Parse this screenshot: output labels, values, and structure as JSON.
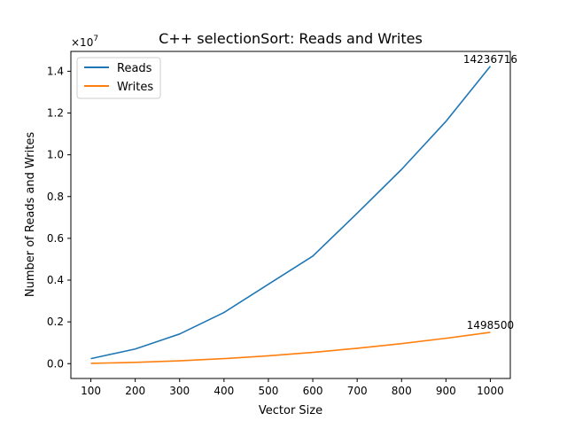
{
  "chart_data": {
    "type": "line",
    "title": "C++ selectionSort: Reads and Writes",
    "xlabel": "Vector Size",
    "ylabel": "Number of Reads and Writes",
    "y_multiplier_label": "×10",
    "y_multiplier_exp": "7",
    "x": [
      100,
      200,
      300,
      400,
      500,
      600,
      700,
      800,
      900,
      1000
    ],
    "x_ticks": [
      "100",
      "200",
      "300",
      "400",
      "500",
      "600",
      "700",
      "800",
      "900",
      "1000"
    ],
    "y_ticks": [
      "0.0",
      "0.2",
      "0.4",
      "0.6",
      "0.8",
      "1.0",
      "1.2",
      "1.4"
    ],
    "y_tick_values": [
      0,
      2000000,
      4000000,
      6000000,
      8000000,
      10000000,
      12000000,
      14000000
    ],
    "xlim": [
      55,
      1045
    ],
    "ylim": [
      -710000,
      14950000
    ],
    "legend_position": "upper-left",
    "series": [
      {
        "name": "Reads",
        "color": "#1f77b4",
        "values": [
          240000,
          700000,
          1420000,
          2450000,
          3800000,
          5150000,
          7200000,
          9300000,
          11600000,
          14236716
        ],
        "end_label": "14236716"
      },
      {
        "name": "Writes",
        "color": "#ff7f0e",
        "values": [
          15000,
          60000,
          135000,
          240000,
          375000,
          540000,
          735000,
          960000,
          1215000,
          1498500
        ],
        "end_label": "1498500"
      }
    ]
  }
}
